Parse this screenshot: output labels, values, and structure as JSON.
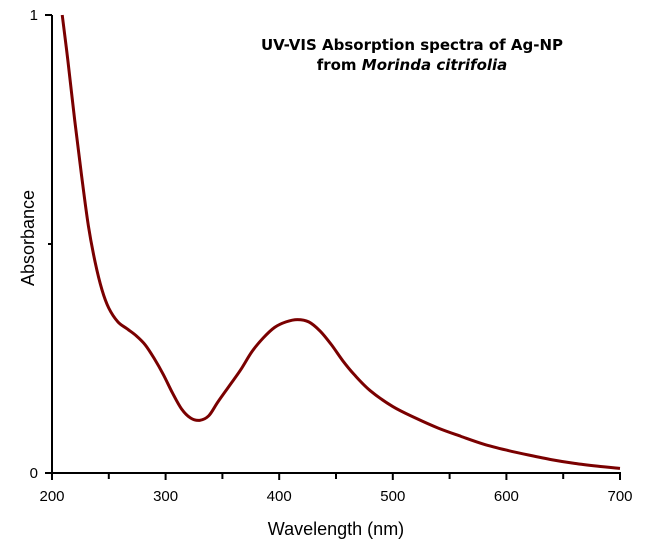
{
  "chart_data": {
    "type": "line",
    "title_line1": "UV-VIS Absorption spectra of Ag-NP",
    "title_line2_prefix": "from ",
    "title_line2_italic": "Morinda citrifolia",
    "xlabel": "Wavelength (nm)",
    "ylabel": "Absorbance",
    "xlim": [
      200,
      700
    ],
    "ylim": [
      0,
      1
    ],
    "xticks": [
      200,
      300,
      400,
      500,
      600,
      700
    ],
    "xminor": [
      250,
      350,
      450,
      550,
      650
    ],
    "yticks": [
      0,
      1
    ],
    "yminor": [
      0.5
    ],
    "grid": false,
    "line_color": "#7a0000",
    "series": [
      {
        "x": [
          209,
          214,
          220,
          226,
          232,
          238,
          244,
          250,
          258,
          266,
          274,
          282,
          290,
          298,
          306,
          314,
          322,
          330,
          338,
          346,
          356,
          366,
          376,
          386,
          396,
          406,
          416,
          426,
          436,
          446,
          456,
          466,
          480,
          500,
          520,
          540,
          560,
          580,
          600,
          620,
          640,
          660,
          680,
          700
        ],
        "y": [
          1.0,
          0.9,
          0.77,
          0.65,
          0.54,
          0.46,
          0.4,
          0.36,
          0.33,
          0.315,
          0.3,
          0.28,
          0.25,
          0.215,
          0.175,
          0.14,
          0.12,
          0.115,
          0.125,
          0.155,
          0.19,
          0.225,
          0.265,
          0.295,
          0.318,
          0.33,
          0.335,
          0.33,
          0.31,
          0.28,
          0.245,
          0.215,
          0.18,
          0.145,
          0.12,
          0.098,
          0.08,
          0.063,
          0.05,
          0.039,
          0.029,
          0.021,
          0.015,
          0.01
        ]
      }
    ]
  }
}
